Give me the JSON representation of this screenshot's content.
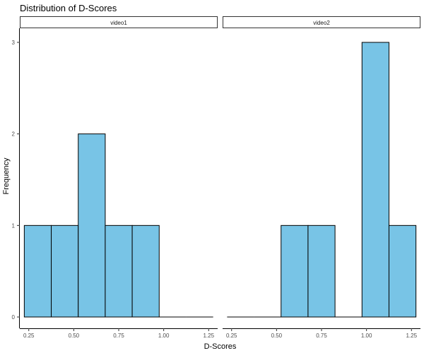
{
  "chart_data": {
    "type": "bar",
    "title": "Distribution of D-Scores",
    "xlabel": "D-Scores",
    "ylabel": "Frequency",
    "xlim": [
      0.2,
      1.3
    ],
    "ylim": [
      0,
      3
    ],
    "x_ticks": [
      0.25,
      0.5,
      0.75,
      1.0,
      1.25
    ],
    "x_tick_labels": [
      "0.25",
      "0.50",
      "0.75",
      "1.00",
      "1.25"
    ],
    "y_ticks": [
      0,
      1,
      2,
      3
    ],
    "y_tick_labels": [
      "0",
      "1",
      "2",
      "3"
    ],
    "bin_width": 0.15,
    "bin_edges": [
      0.225,
      0.375,
      0.525,
      0.675,
      0.825,
      0.975,
      1.125,
      1.275
    ],
    "grid": false,
    "bar_color": "#78c4e6",
    "bar_border_color": "#000000",
    "panels": [
      {
        "name": "video1",
        "counts": [
          1,
          1,
          2,
          1,
          1,
          0,
          0
        ]
      },
      {
        "name": "video2",
        "counts": [
          0,
          0,
          1,
          1,
          0,
          3,
          1
        ]
      }
    ]
  }
}
